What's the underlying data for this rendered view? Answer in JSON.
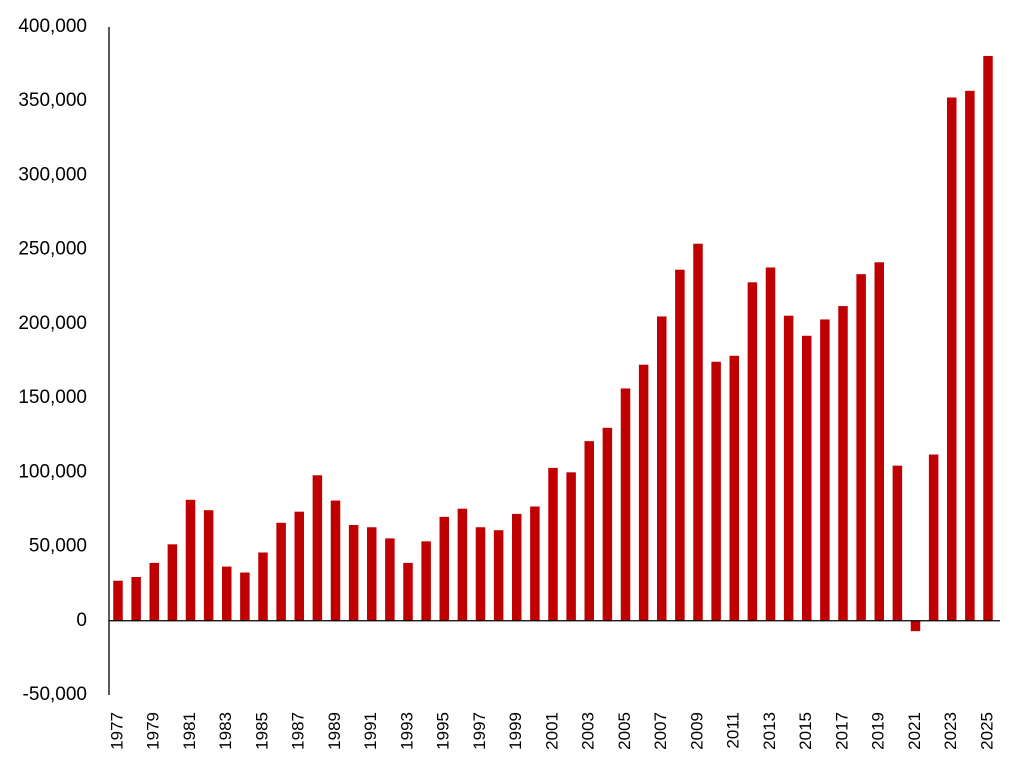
{
  "chart_data": {
    "type": "bar",
    "title": "",
    "xlabel": "",
    "ylabel": "",
    "ylim": [
      -50000,
      400000
    ],
    "yticks": [
      -50000,
      0,
      50000,
      100000,
      150000,
      200000,
      250000,
      300000,
      350000,
      400000
    ],
    "ytick_labels": [
      "-50,000",
      "0",
      "50,000",
      "100,000",
      "150,000",
      "200,000",
      "250,000",
      "300,000",
      "350,000",
      "400,000"
    ],
    "xtick_labels": [
      "1977",
      "1979",
      "1981",
      "1983",
      "1985",
      "1987",
      "1989",
      "1991",
      "1993",
      "1995",
      "1997",
      "1999",
      "2001",
      "2003",
      "2005",
      "2007",
      "2009",
      "2011",
      "2013",
      "2015",
      "2017",
      "2019",
      "2021",
      "2023",
      "2025"
    ],
    "categories": [
      "1977",
      "1978",
      "1979",
      "1980",
      "1981",
      "1982",
      "1983",
      "1984",
      "1985",
      "1986",
      "1987",
      "1988",
      "1989",
      "1990",
      "1991",
      "1992",
      "1993",
      "1994",
      "1995",
      "1996",
      "1997",
      "1998",
      "1999",
      "2000",
      "2001",
      "2002",
      "2003",
      "2004",
      "2005",
      "2006",
      "2007",
      "2008",
      "2009",
      "2010",
      "2011",
      "2012",
      "2013",
      "2014",
      "2015",
      "2016",
      "2017",
      "2018",
      "2019",
      "2020",
      "2021",
      "2022",
      "2023",
      "2024",
      "2025"
    ],
    "values": [
      27000,
      29500,
      39000,
      51500,
      81500,
      74500,
      36500,
      32500,
      46000,
      66000,
      73500,
      98000,
      81000,
      64500,
      63000,
      55500,
      39000,
      53500,
      70000,
      75500,
      63000,
      61000,
      72000,
      77000,
      103000,
      100000,
      121000,
      130000,
      156500,
      172500,
      205000,
      236500,
      254000,
      174500,
      178500,
      228000,
      238000,
      205500,
      192000,
      203000,
      212000,
      233500,
      241500,
      104500,
      -7000,
      112000,
      352500,
      357000,
      380500
    ],
    "grid": false,
    "legend": "none",
    "colors": {
      "bar": "#C00000",
      "axis": "#000000"
    }
  }
}
